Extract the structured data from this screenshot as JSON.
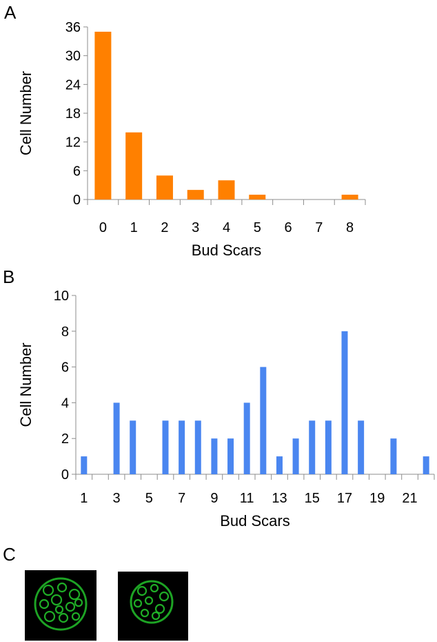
{
  "panels": {
    "a_label": "A",
    "b_label": "B",
    "c_label": "C"
  },
  "chart_data": [
    {
      "type": "bar",
      "panel": "A",
      "xlabel": "Bud Scars",
      "ylabel": "Cell Number",
      "ylim": [
        0,
        36
      ],
      "yticks": [
        0,
        6,
        12,
        18,
        24,
        30,
        36
      ],
      "categories": [
        "0",
        "1",
        "2",
        "3",
        "4",
        "5",
        "6",
        "7",
        "8"
      ],
      "values": [
        35,
        14,
        5,
        2,
        4,
        1,
        0,
        0,
        1
      ],
      "color": "#ff8000",
      "grid": false
    },
    {
      "type": "bar",
      "panel": "B",
      "xlabel": "Bud Scars",
      "ylabel": "Cell Number",
      "ylim": [
        0,
        10
      ],
      "yticks": [
        0,
        2,
        4,
        6,
        8,
        10
      ],
      "categories": [
        "1",
        "2",
        "3",
        "4",
        "5",
        "6",
        "7",
        "8",
        "9",
        "10",
        "11",
        "12",
        "13",
        "14",
        "15",
        "16",
        "17",
        "18",
        "19",
        "20",
        "21",
        "22"
      ],
      "xtick_labels": [
        "1",
        "3",
        "5",
        "7",
        "9",
        "11",
        "13",
        "15",
        "17",
        "19",
        "21"
      ],
      "values": [
        1,
        0,
        4,
        3,
        0,
        3,
        3,
        3,
        2,
        2,
        4,
        6,
        1,
        2,
        3,
        3,
        8,
        3,
        0,
        2,
        0,
        1
      ],
      "color": "#4a86f0",
      "grid": false
    }
  ],
  "micrographs": [
    {
      "name": "cell-micrograph-1",
      "stain_color": "#22c02a"
    },
    {
      "name": "cell-micrograph-2",
      "stain_color": "#22c02a"
    }
  ]
}
